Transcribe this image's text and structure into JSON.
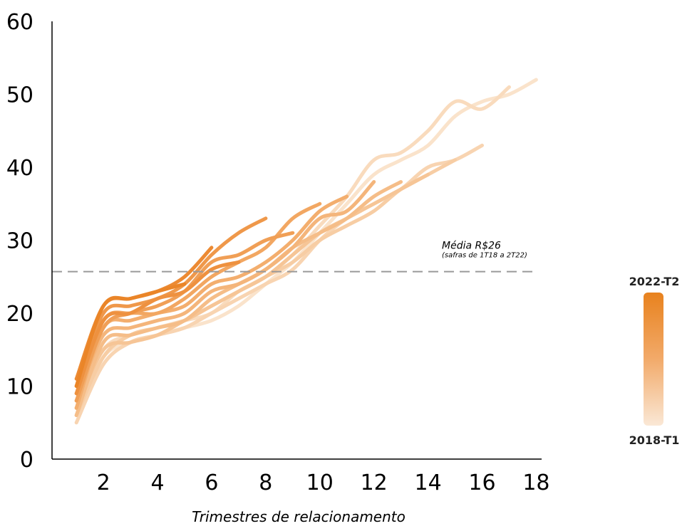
{
  "chart_data": {
    "type": "line",
    "title": "",
    "xlabel": "Trimestres de relacionamento",
    "ylabel": "",
    "xlim": [
      0.1,
      18.2
    ],
    "ylim": [
      0,
      60
    ],
    "x_ticks": [
      "2",
      "4",
      "6",
      "8",
      "10",
      "12",
      "14",
      "16",
      "18"
    ],
    "y_ticks": [
      "0",
      "10",
      "20",
      "30",
      "40",
      "50",
      "60"
    ],
    "reference_line": {
      "value": 25.7,
      "label": "Média R$26",
      "sublabel": "(safras de 1T18 a 2T22)"
    },
    "legend": {
      "top_label": "2022-T2",
      "bottom_label": "2018-T1",
      "top_color": "#e8821e",
      "bottom_color": "#fae8d6"
    },
    "grid": false,
    "series": [
      {
        "color": "#fae3cb",
        "x": [
          1,
          2,
          3,
          4,
          5,
          6,
          7,
          8,
          9,
          10,
          11,
          12,
          13,
          14,
          15,
          16,
          17,
          18
        ],
        "y": [
          6,
          14,
          16,
          17,
          18,
          19,
          21,
          24,
          27,
          31,
          35,
          39,
          41,
          43,
          47,
          49,
          50,
          52
        ]
      },
      {
        "color": "#f9dbbd",
        "x": [
          1,
          2,
          3,
          4,
          5,
          6,
          7,
          8,
          9,
          10,
          11,
          12,
          13,
          14,
          15,
          16,
          17
        ],
        "y": [
          7,
          15,
          17,
          18,
          19,
          20,
          23,
          25,
          28,
          32,
          36,
          41,
          42,
          45,
          49,
          48,
          51
        ]
      },
      {
        "color": "#f8d4b1",
        "x": [
          1,
          2,
          3,
          4,
          5,
          6,
          7,
          8,
          9,
          10,
          11,
          12,
          13,
          14,
          15,
          16
        ],
        "y": [
          5,
          13,
          16,
          17,
          18,
          20,
          22,
          24,
          26,
          30,
          33,
          35,
          37,
          40,
          41,
          43
        ]
      },
      {
        "color": "#f7cda4",
        "x": [
          1,
          2,
          3,
          4,
          5,
          6,
          7,
          8,
          9,
          10,
          11,
          12,
          13,
          14,
          15
        ],
        "y": [
          6,
          14,
          17,
          18,
          19,
          21,
          23,
          25,
          27,
          30,
          32,
          34,
          37,
          39,
          41
        ]
      },
      {
        "color": "#f6c596",
        "x": [
          1,
          2,
          3,
          4,
          5,
          6,
          7,
          8,
          9,
          10,
          11,
          12,
          13,
          14
        ],
        "y": [
          7,
          15,
          16,
          17,
          19,
          21,
          23,
          25,
          28,
          31,
          33,
          35,
          37,
          39
        ]
      },
      {
        "color": "#f5bd88",
        "x": [
          1,
          2,
          3,
          4,
          5,
          6,
          7,
          8,
          9,
          10,
          11,
          12,
          13
        ],
        "y": [
          6,
          16,
          17,
          18,
          19,
          22,
          24,
          26,
          29,
          31,
          33,
          36,
          38
        ]
      },
      {
        "color": "#f4b57b",
        "x": [
          1,
          2,
          3,
          4,
          5,
          6,
          7,
          8,
          9,
          10,
          11,
          12
        ],
        "y": [
          8,
          17,
          18,
          19,
          20,
          23,
          24,
          26,
          29,
          33,
          34,
          38
        ]
      },
      {
        "color": "#f3ae6e",
        "x": [
          1,
          2,
          3,
          4,
          5,
          6,
          7,
          8,
          9,
          10,
          11
        ],
        "y": [
          7,
          18,
          19,
          20,
          21,
          24,
          25,
          27,
          30,
          34,
          36
        ]
      },
      {
        "color": "#f2a762",
        "x": [
          1,
          2,
          3,
          4,
          5,
          6,
          7,
          8,
          9,
          10
        ],
        "y": [
          9,
          19,
          20,
          20,
          22,
          25,
          27,
          29,
          33,
          35
        ]
      },
      {
        "color": "#f09f56",
        "x": [
          1,
          2,
          3,
          4,
          5,
          6,
          7,
          8,
          9
        ],
        "y": [
          8,
          18,
          20,
          21,
          23,
          27,
          28,
          30,
          31
        ]
      },
      {
        "color": "#ef984a",
        "x": [
          1,
          2,
          3,
          4,
          5,
          6,
          7,
          8
        ],
        "y": [
          10,
          20,
          21,
          22,
          24,
          28,
          31,
          33
        ]
      },
      {
        "color": "#ee913f",
        "x": [
          1,
          2,
          3,
          4,
          5,
          6,
          7
        ],
        "y": [
          9,
          19,
          20,
          22,
          23,
          26,
          27
        ]
      },
      {
        "color": "#ec8a33",
        "x": [
          1,
          2,
          3,
          4,
          5,
          6
        ],
        "y": [
          11,
          21,
          22,
          23,
          25,
          29
        ]
      },
      {
        "color": "#ea8528",
        "x": [
          1,
          2,
          3,
          4,
          5
        ],
        "y": [
          10,
          21,
          22,
          23,
          24
        ]
      }
    ]
  }
}
